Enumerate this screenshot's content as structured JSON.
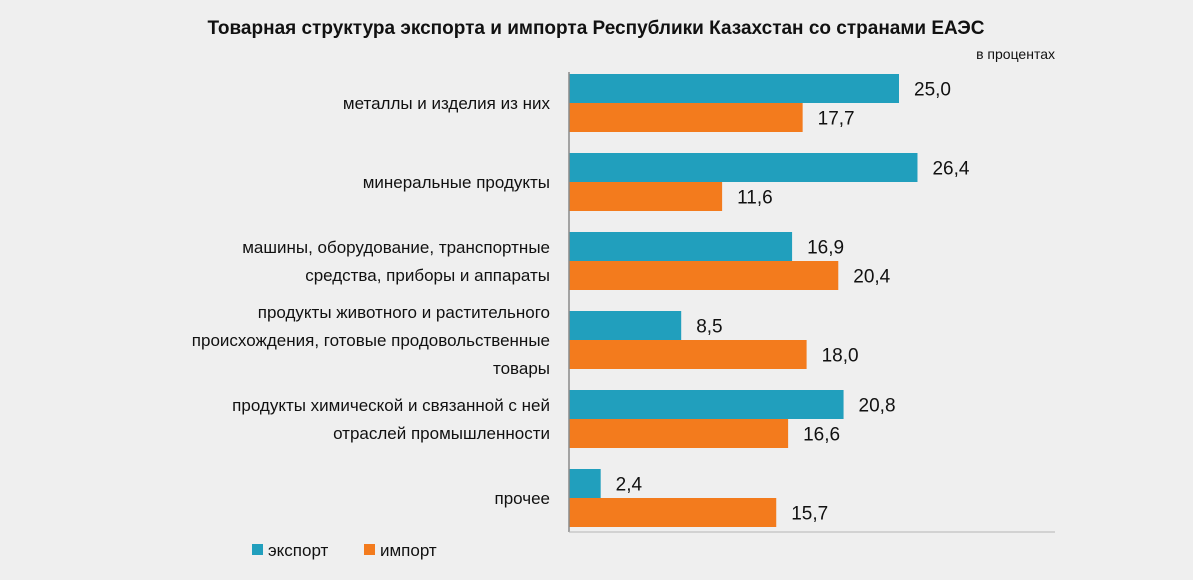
{
  "chart_data": {
    "type": "bar",
    "orientation": "horizontal",
    "title": "Товарная структура экспорта и импорта Республики Казахстан со странами ЕАЭС",
    "units_note": "в процентах",
    "categories": [
      [
        "металлы и изделия из них"
      ],
      [
        "минеральные продукты"
      ],
      [
        "машины, оборудование, транспортные",
        "средства, приборы и аппараты"
      ],
      [
        "продукты животного и растительного",
        "происхождения, готовые продовольственные",
        "товары"
      ],
      [
        "продукты химической и связанной с ней",
        "отраслей промышленности"
      ],
      [
        "прочее"
      ]
    ],
    "series": [
      {
        "name": "экспорт",
        "color": "#219fbd",
        "values": [
          25.0,
          26.4,
          16.9,
          8.5,
          20.8,
          2.4
        ],
        "labels": [
          "25,0",
          "26,4",
          "16,9",
          "8,5",
          "20,8",
          "2,4"
        ]
      },
      {
        "name": "импорт",
        "color": "#f37b1d",
        "values": [
          17.7,
          11.6,
          20.4,
          18.0,
          16.6,
          15.7
        ],
        "labels": [
          "17,7",
          "11,6",
          "20,4",
          "18,0",
          "16,6",
          "15,7"
        ]
      }
    ],
    "xlim": [
      0,
      30
    ],
    "grid": false,
    "legend_position": "bottom-left"
  }
}
